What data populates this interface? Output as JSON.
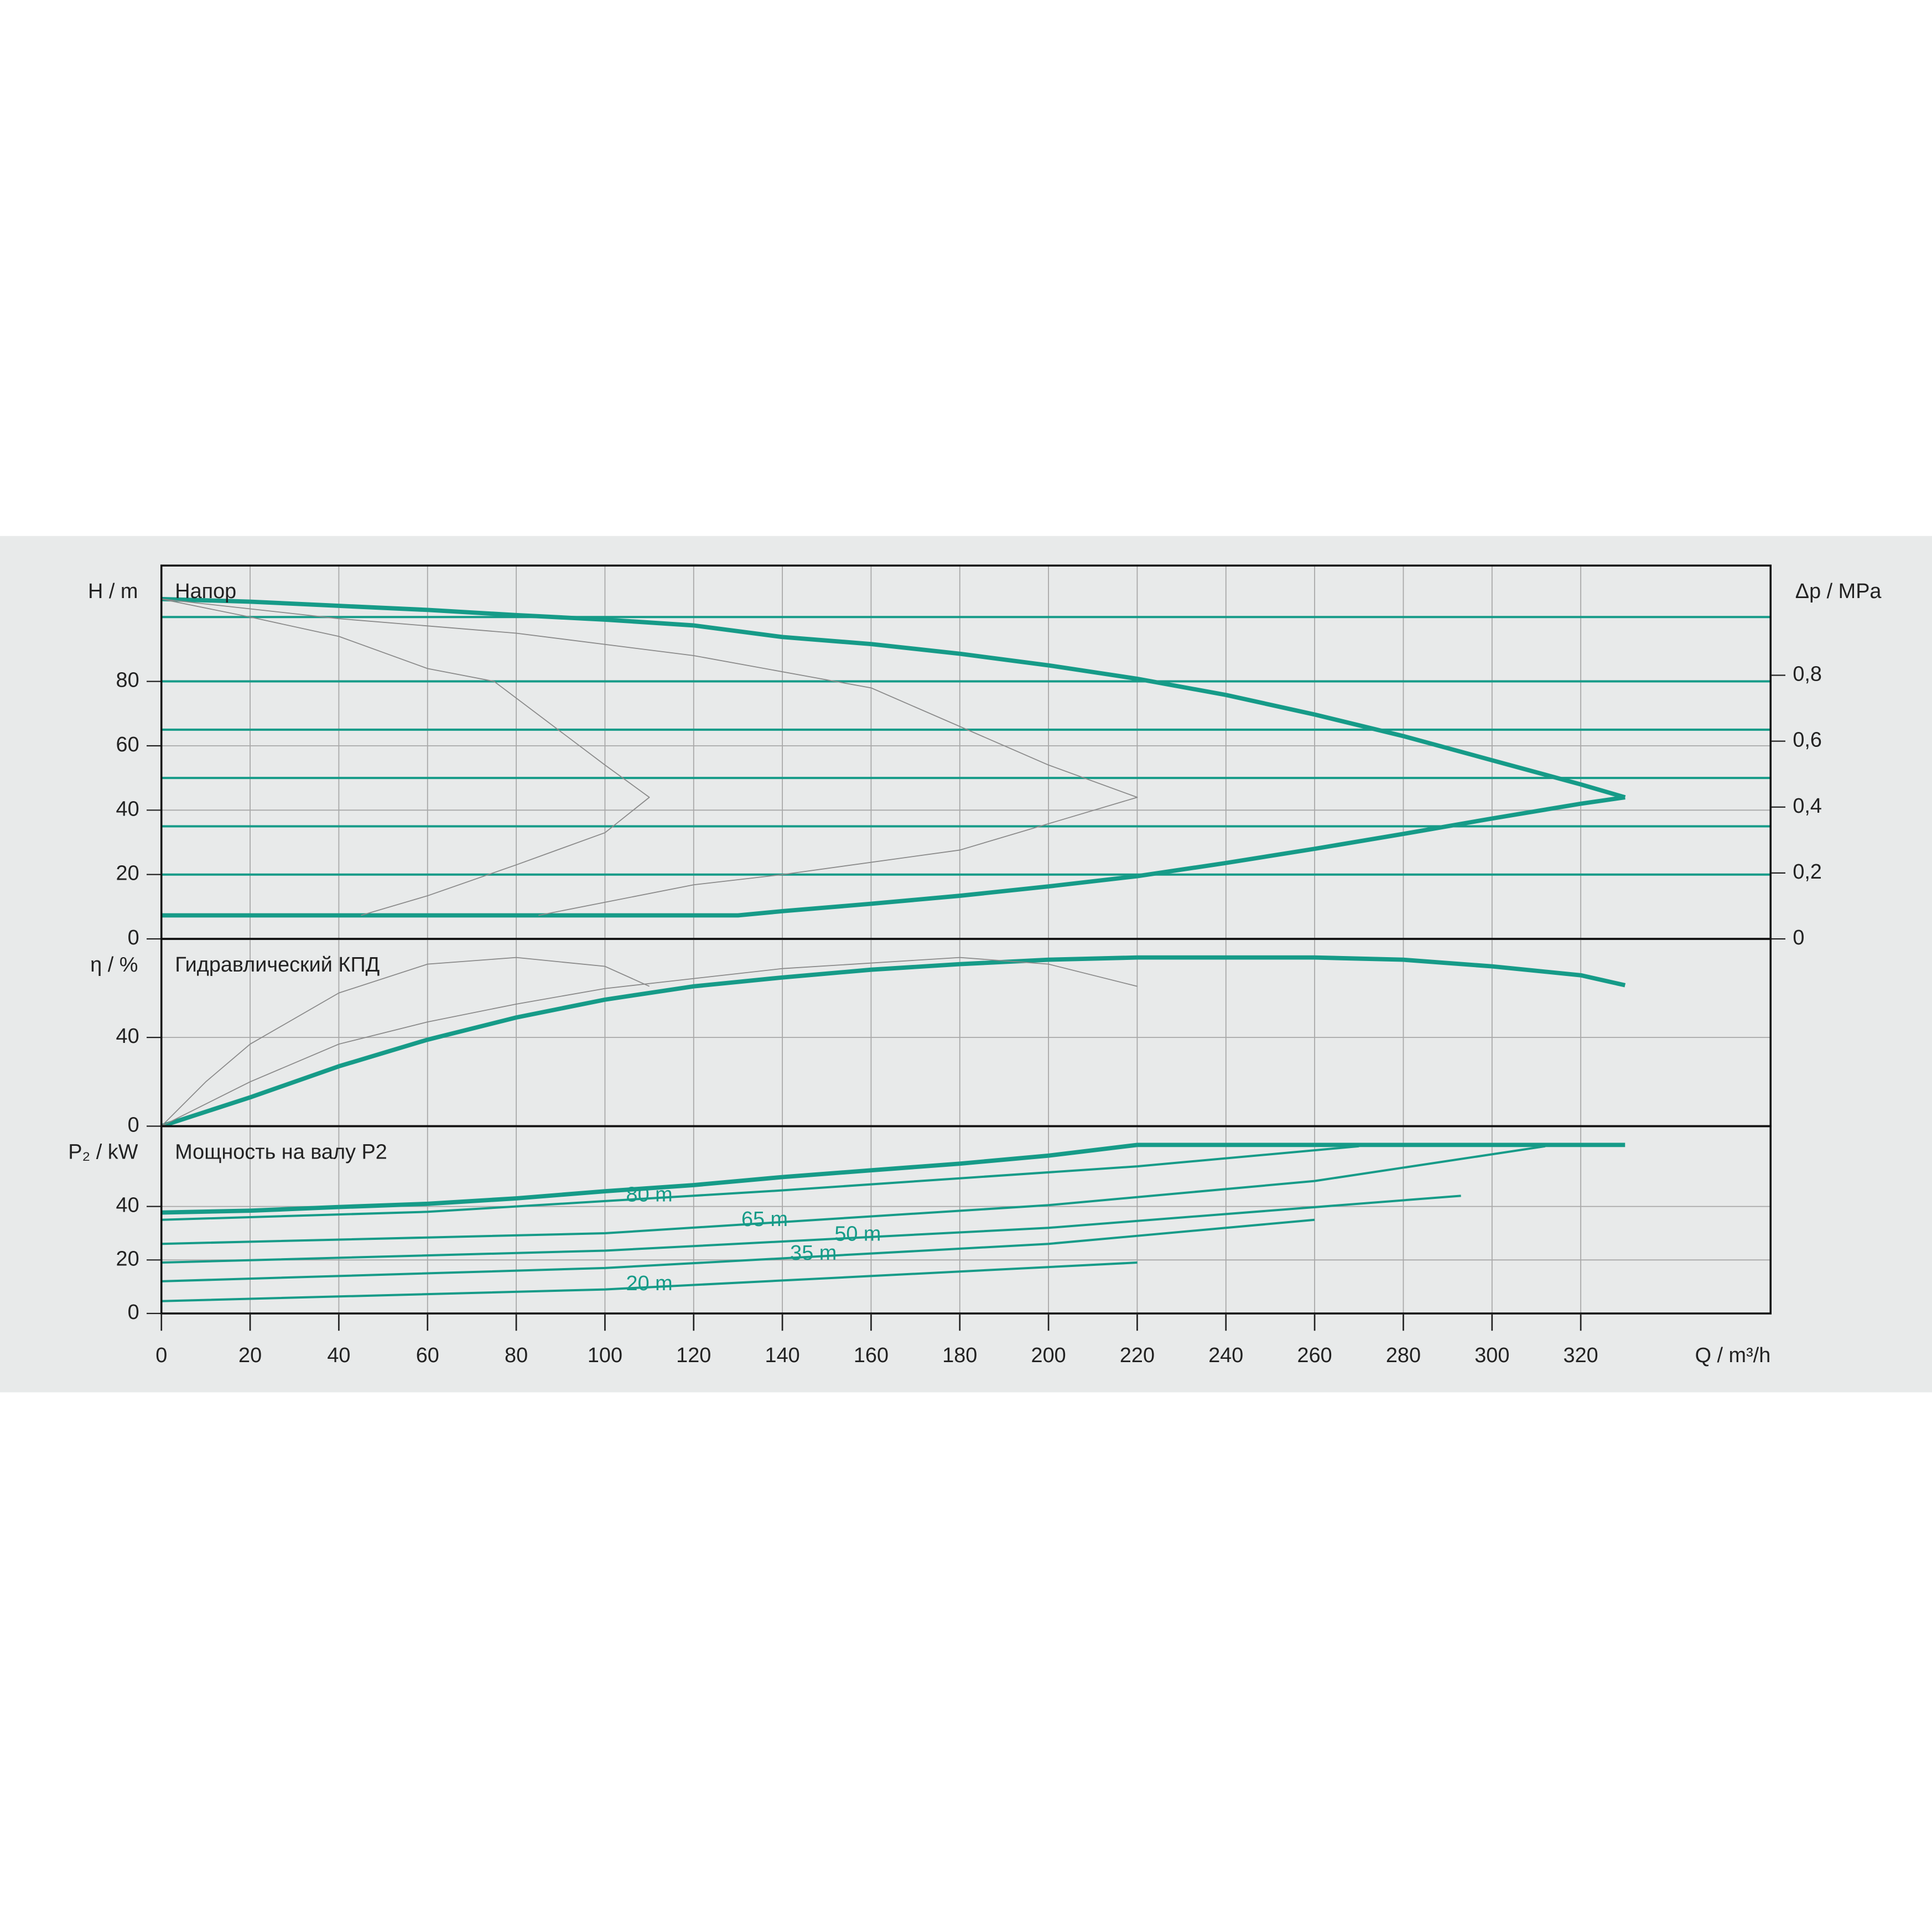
{
  "chart_data": [
    {
      "type": "line",
      "title": "Напор",
      "y_label": "H / m",
      "y2_label": "Δp / MPa",
      "ylim": [
        0,
        116
      ],
      "yticks": [
        0,
        20,
        40,
        60,
        80
      ],
      "y2lim": [
        0,
        1.133
      ],
      "y2ticks": [
        0,
        {
          "value": 0.2,
          "label": "0,2"
        },
        {
          "value": 0.4,
          "label": "0,4"
        },
        {
          "value": 0.6,
          "label": "0,6"
        },
        {
          "value": 0.8,
          "label": "0,8"
        }
      ],
      "series": [
        {
          "color": "#169b88",
          "linewidth": 3.5,
          "x": [
            0,
            20,
            40,
            60,
            80,
            100,
            120,
            140,
            160,
            180,
            200,
            220,
            240,
            260,
            280,
            300,
            320,
            330
          ],
          "values": [
            105.6,
            104.8,
            103.5,
            102.2,
            100.6,
            99.2,
            97.4,
            93.8,
            91.6,
            88.6,
            85,
            80.8,
            75.8,
            69.7,
            63,
            55.5,
            48,
            44
          ]
        },
        {
          "color": "#169b88",
          "linewidth": 3.5,
          "x": [
            0,
            130,
            140,
            160,
            180,
            200,
            220,
            240,
            260,
            280,
            300,
            320,
            330
          ],
          "values": [
            7.3,
            7.3,
            8.6,
            10.9,
            13.4,
            16.3,
            19.5,
            23.6,
            28,
            32.6,
            37.4,
            42,
            44
          ]
        },
        {
          "color": "#169b88",
          "linewidth": 1.8,
          "x": [
            0,
            362.8
          ],
          "values": [
            100,
            100
          ]
        },
        {
          "color": "#169b88",
          "linewidth": 1.8,
          "x": [
            0,
            362.8
          ],
          "values": [
            80,
            80
          ]
        },
        {
          "color": "#169b88",
          "linewidth": 1.8,
          "x": [
            0,
            362.8
          ],
          "values": [
            65,
            65
          ]
        },
        {
          "color": "#169b88",
          "linewidth": 1.8,
          "x": [
            0,
            362.8
          ],
          "values": [
            50,
            50
          ]
        },
        {
          "color": "#169b88",
          "linewidth": 1.8,
          "x": [
            0,
            362.8
          ],
          "values": [
            35,
            35
          ]
        },
        {
          "color": "#169b88",
          "linewidth": 1.8,
          "x": [
            0,
            362.8
          ],
          "values": [
            20,
            20
          ]
        },
        {
          "color": "#8a8a8a",
          "linewidth": 0.8,
          "x": [
            0,
            20,
            40,
            60,
            75,
            100,
            110,
            100,
            80,
            60,
            45
          ],
          "values": [
            105.6,
            100,
            94,
            84,
            80,
            54,
            44,
            33,
            23,
            13.4,
            7.3
          ]
        },
        {
          "color": "#8a8a8a",
          "linewidth": 0.8,
          "x": [
            0,
            40,
            80,
            120,
            160,
            200,
            220,
            180,
            140,
            120,
            85
          ],
          "values": [
            105.6,
            99.5,
            95,
            88,
            78,
            54,
            44,
            27.6,
            20,
            16.8,
            7.3
          ]
        }
      ]
    },
    {
      "type": "line",
      "title": "Гидравлический КПД",
      "y_label": "η / %",
      "ylim": [
        0,
        84.4
      ],
      "yticks": [
        0,
        40
      ],
      "series": [
        {
          "color": "#169b88",
          "linewidth": 3.5,
          "x": [
            0,
            20,
            40,
            60,
            80,
            100,
            120,
            140,
            160,
            180,
            200,
            220,
            240,
            260,
            280,
            300,
            320,
            330
          ],
          "values": [
            0,
            13,
            27,
            39,
            49,
            57,
            63,
            67,
            70.5,
            73,
            75,
            76,
            76,
            76,
            75,
            72,
            68,
            63.5
          ]
        },
        {
          "color": "#8a8a8a",
          "linewidth": 0.8,
          "x": [
            0,
            10,
            20,
            40,
            60,
            80,
            100,
            110
          ],
          "values": [
            0,
            20,
            37,
            60,
            73,
            76,
            72,
            63
          ]
        },
        {
          "color": "#8a8a8a",
          "linewidth": 0.8,
          "x": [
            0,
            20,
            40,
            60,
            80,
            100,
            140,
            180,
            200,
            220
          ],
          "values": [
            0,
            20,
            37,
            47,
            55,
            62,
            71,
            76,
            73,
            63
          ]
        }
      ]
    },
    {
      "type": "line",
      "title": "Мощность на валу P2",
      "y_label": "P₂ / kW",
      "x_label": "Q / m³/h",
      "ylim": [
        0,
        70
      ],
      "yticks": [
        0,
        20,
        40
      ],
      "xlim": [
        0,
        362.8
      ],
      "xticks": [
        0,
        20,
        40,
        60,
        80,
        100,
        120,
        140,
        160,
        180,
        200,
        220,
        240,
        260,
        280,
        300,
        320
      ],
      "series": [
        {
          "color": "#169b88",
          "linewidth": 3.5,
          "x": [
            0,
            20,
            40,
            60,
            80,
            100,
            120,
            140,
            160,
            180,
            200,
            220,
            330
          ],
          "values": [
            37.7,
            38.4,
            39.8,
            41,
            43,
            45.7,
            48,
            51,
            53.5,
            56,
            59,
            63,
            63
          ]
        },
        {
          "name": "80 m",
          "color": "#169b88",
          "linewidth": 1.8,
          "x": [
            0,
            60,
            100,
            140,
            180,
            220,
            270
          ],
          "values": [
            35,
            38,
            42,
            46,
            50.5,
            55,
            62.5
          ]
        },
        {
          "name": "65 m",
          "color": "#169b88",
          "linewidth": 1.8,
          "x": [
            0,
            100,
            200,
            260,
            312
          ],
          "values": [
            26,
            30,
            40.5,
            49.5,
            62.5
          ]
        },
        {
          "name": "50 m",
          "color": "#169b88",
          "linewidth": 1.8,
          "x": [
            0,
            100,
            200,
            293
          ],
          "values": [
            19,
            23.5,
            32,
            44
          ]
        },
        {
          "name": "35 m",
          "color": "#169b88",
          "linewidth": 1.8,
          "x": [
            0,
            100,
            200,
            260
          ],
          "values": [
            12,
            17,
            26,
            35
          ]
        },
        {
          "name": "20 m",
          "color": "#169b88",
          "linewidth": 1.8,
          "x": [
            0,
            100,
            220
          ],
          "values": [
            4.6,
            9,
            19
          ]
        }
      ]
    }
  ]
}
